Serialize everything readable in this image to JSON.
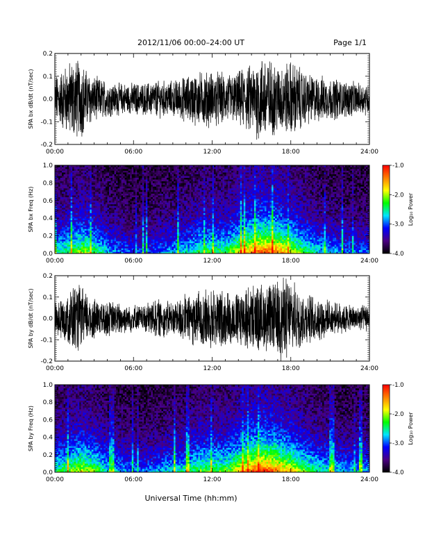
{
  "header": {
    "title": "2012/11/06  00:00–24:00 UT",
    "page": "Page 1/1"
  },
  "footer": {
    "xlabel": "Universal Time (hh:mm)"
  },
  "colorbar": {
    "label": "Log₁₀ Power",
    "ticks": [
      "-1.0",
      "-2.0",
      "-3.0",
      "-4.0"
    ],
    "range": [
      -4.0,
      -1.0
    ],
    "colors": [
      "#000000",
      "#4b0082",
      "#0000ff",
      "#00e5ff",
      "#00ff00",
      "#ffff00",
      "#ff8000",
      "#ff0000"
    ]
  },
  "chart_data": [
    {
      "type": "line",
      "ylabel": "SPA bx dB/dt (nT/sec)",
      "ylim": [
        -0.2,
        0.2
      ],
      "yticks": [
        "0.2",
        "0.1",
        "0.0",
        "-0.1",
        "-0.2"
      ],
      "xlim": [
        "00:00",
        "24:00"
      ],
      "xticks": [
        "00:00",
        "06:00",
        "12:00",
        "18:00",
        "24:00"
      ],
      "color": "#000000",
      "series": [
        {
          "x": [
            "00:00",
            "00:30",
            "01:00",
            "01:30",
            "02:00",
            "02:30",
            "03:00",
            "03:30",
            "04:00",
            "04:30",
            "05:00",
            "05:30",
            "06:00",
            "06:30",
            "07:00",
            "07:30",
            "08:00",
            "08:30",
            "09:00",
            "09:30",
            "10:00",
            "10:30",
            "11:00",
            "11:30",
            "12:00",
            "12:30",
            "13:00",
            "13:30",
            "14:00",
            "14:30",
            "15:00",
            "15:30",
            "16:00",
            "16:30",
            "17:00",
            "17:30",
            "18:00",
            "18:30",
            "19:00",
            "19:30",
            "20:00",
            "20:30",
            "21:00",
            "21:30",
            "22:00",
            "22:30",
            "23:00",
            "23:30",
            "24:00"
          ],
          "envelope": [
            0.1,
            0.13,
            0.16,
            0.18,
            0.17,
            0.12,
            0.1,
            0.09,
            0.08,
            0.07,
            0.07,
            0.07,
            0.07,
            0.07,
            0.07,
            0.08,
            0.08,
            0.08,
            0.08,
            0.09,
            0.1,
            0.11,
            0.12,
            0.12,
            0.12,
            0.12,
            0.11,
            0.11,
            0.12,
            0.14,
            0.15,
            0.18,
            0.2,
            0.17,
            0.15,
            0.16,
            0.17,
            0.15,
            0.12,
            0.11,
            0.1,
            0.1,
            0.09,
            0.09,
            0.08,
            0.08,
            0.07,
            0.07,
            0.07
          ]
        }
      ]
    },
    {
      "type": "heatmap",
      "ylabel": "SPA bx Freq (Hz)",
      "ylim": [
        0.0,
        1.0
      ],
      "yticks": [
        "1.0",
        "0.8",
        "0.6",
        "0.4",
        "0.2",
        "0.0"
      ],
      "xlim": [
        "00:00",
        "24:00"
      ],
      "xticks": [
        "00:00",
        "06:00",
        "12:00",
        "18:00",
        "24:00"
      ],
      "zlabel": "Log₁₀ Power",
      "zlim": [
        -4.0,
        -1.0
      ],
      "hour_activity": [
        0.45,
        0.55,
        0.65,
        0.55,
        0.4,
        0.35,
        0.3,
        0.3,
        0.35,
        0.4,
        0.45,
        0.55,
        0.55,
        0.55,
        0.7,
        0.85,
        0.9,
        0.85,
        0.7,
        0.55,
        0.45,
        0.4,
        0.35,
        0.35
      ]
    },
    {
      "type": "line",
      "ylabel": "SPA by dB/dt (nT/sec)",
      "ylim": [
        -0.2,
        0.2
      ],
      "yticks": [
        "0.2",
        "0.1",
        "0.0",
        "-0.1",
        "-0.2"
      ],
      "xlim": [
        "00:00",
        "24:00"
      ],
      "xticks": [
        "00:00",
        "06:00",
        "12:00",
        "18:00",
        "24:00"
      ],
      "color": "#000000",
      "series": [
        {
          "x": [
            "00:00",
            "00:30",
            "01:00",
            "01:30",
            "02:00",
            "02:30",
            "03:00",
            "03:30",
            "04:00",
            "04:30",
            "05:00",
            "05:30",
            "06:00",
            "06:30",
            "07:00",
            "07:30",
            "08:00",
            "08:30",
            "09:00",
            "09:30",
            "10:00",
            "10:30",
            "11:00",
            "11:30",
            "12:00",
            "12:30",
            "13:00",
            "13:30",
            "14:00",
            "14:30",
            "15:00",
            "15:30",
            "16:00",
            "16:30",
            "17:00",
            "17:30",
            "18:00",
            "18:30",
            "19:00",
            "19:30",
            "20:00",
            "20:30",
            "21:00",
            "21:30",
            "22:00",
            "22:30",
            "23:00",
            "23:30",
            "24:00"
          ],
          "envelope": [
            0.08,
            0.1,
            0.13,
            0.16,
            0.15,
            0.12,
            0.1,
            0.08,
            0.08,
            0.08,
            0.07,
            0.07,
            0.07,
            0.06,
            0.07,
            0.09,
            0.09,
            0.08,
            0.08,
            0.1,
            0.11,
            0.12,
            0.13,
            0.14,
            0.14,
            0.14,
            0.13,
            0.12,
            0.13,
            0.14,
            0.15,
            0.16,
            0.16,
            0.16,
            0.17,
            0.2,
            0.18,
            0.14,
            0.12,
            0.11,
            0.1,
            0.09,
            0.08,
            0.07,
            0.07,
            0.06,
            0.06,
            0.06,
            0.06
          ]
        }
      ]
    },
    {
      "type": "heatmap",
      "ylabel": "SPA by Freq (Hz)",
      "ylim": [
        0.0,
        1.0
      ],
      "yticks": [
        "1.0",
        "0.8",
        "0.6",
        "0.4",
        "0.2",
        "0.0"
      ],
      "xlim": [
        "00:00",
        "24:00"
      ],
      "xticks": [
        "00:00",
        "06:00",
        "12:00",
        "18:00",
        "24:00"
      ],
      "zlabel": "Log₁₀ Power",
      "zlim": [
        -4.0,
        -1.0
      ],
      "hour_activity": [
        0.5,
        0.6,
        0.7,
        0.6,
        0.45,
        0.4,
        0.35,
        0.35,
        0.4,
        0.45,
        0.5,
        0.6,
        0.6,
        0.6,
        0.75,
        0.9,
        0.95,
        0.85,
        0.75,
        0.6,
        0.5,
        0.45,
        0.4,
        0.4
      ]
    }
  ]
}
